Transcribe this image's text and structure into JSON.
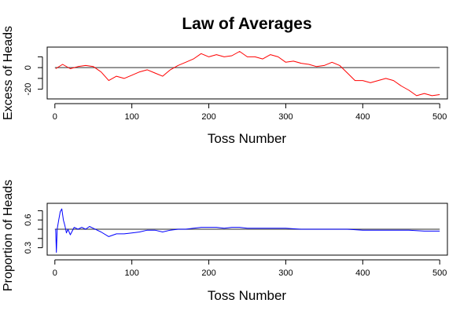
{
  "title": "Law of Averages",
  "chart_data": [
    {
      "type": "line",
      "title": "Law of Averages",
      "xlabel": "Toss Number",
      "ylabel": "Excess of Heads",
      "xlim": [
        -10,
        510
      ],
      "ylim": [
        -29,
        19
      ],
      "xticks": [
        0,
        100,
        200,
        300,
        400,
        500
      ],
      "xtick_labels": [
        "0",
        "100",
        "200",
        "300",
        "400",
        "500"
      ],
      "yticks": [
        -20,
        -10,
        0,
        10
      ],
      "ytick_labels": [
        "-20",
        "",
        "0",
        ""
      ],
      "reference_line": 0,
      "reference_color": "#555555",
      "series": [
        {
          "color": "#ff0000",
          "x": [
            1,
            10,
            20,
            30,
            40,
            50,
            60,
            70,
            80,
            90,
            100,
            110,
            120,
            130,
            140,
            150,
            160,
            170,
            180,
            190,
            200,
            210,
            220,
            230,
            240,
            250,
            260,
            270,
            280,
            290,
            300,
            310,
            320,
            330,
            340,
            350,
            360,
            370,
            380,
            390,
            400,
            410,
            420,
            430,
            440,
            450,
            460,
            470,
            480,
            490,
            500
          ],
          "y": [
            -1,
            3,
            -1,
            1,
            2,
            1,
            -4,
            -12,
            -8,
            -10,
            -7,
            -4,
            -2,
            -5,
            -8,
            -2,
            2,
            5,
            8,
            13,
            10,
            12,
            10,
            11,
            15,
            10,
            10,
            8,
            12,
            10,
            5,
            6,
            4,
            3,
            1,
            2,
            5,
            2,
            -5,
            -12,
            -12,
            -14,
            -12,
            -10,
            -12,
            -17,
            -21,
            -26,
            -24,
            -26,
            -25
          ]
        }
      ]
    },
    {
      "type": "line",
      "xlabel": "Toss Number",
      "ylabel": "Proportion of Heads",
      "xlim": [
        -10,
        510
      ],
      "ylim": [
        0.22,
        0.78
      ],
      "xticks": [
        0,
        100,
        200,
        300,
        400,
        500
      ],
      "xtick_labels": [
        "0",
        "100",
        "200",
        "300",
        "400",
        "500"
      ],
      "yticks": [
        0.3,
        0.4,
        0.5,
        0.6,
        0.7
      ],
      "ytick_labels": [
        "0.3",
        "",
        "",
        "0.6",
        ""
      ],
      "reference_line": 0.5,
      "reference_color": "#555555",
      "series": [
        {
          "color": "#0000ff",
          "x": [
            1,
            2,
            3,
            5,
            7,
            9,
            11,
            13,
            15,
            17,
            20,
            25,
            30,
            35,
            40,
            45,
            50,
            60,
            70,
            80,
            90,
            100,
            110,
            120,
            130,
            140,
            150,
            160,
            170,
            180,
            190,
            200,
            210,
            220,
            230,
            240,
            250,
            260,
            270,
            280,
            290,
            300,
            320,
            340,
            360,
            380,
            400,
            420,
            440,
            460,
            480,
            500
          ],
          "y": [
            0.5,
            0.25,
            0.5,
            0.6,
            0.69,
            0.72,
            0.6,
            0.54,
            0.46,
            0.5,
            0.44,
            0.52,
            0.5,
            0.52,
            0.5,
            0.53,
            0.51,
            0.47,
            0.42,
            0.45,
            0.45,
            0.46,
            0.47,
            0.49,
            0.49,
            0.47,
            0.49,
            0.5,
            0.5,
            0.51,
            0.52,
            0.52,
            0.52,
            0.51,
            0.52,
            0.52,
            0.51,
            0.51,
            0.51,
            0.51,
            0.51,
            0.51,
            0.5,
            0.5,
            0.5,
            0.5,
            0.49,
            0.49,
            0.49,
            0.49,
            0.48,
            0.48
          ]
        }
      ]
    }
  ]
}
